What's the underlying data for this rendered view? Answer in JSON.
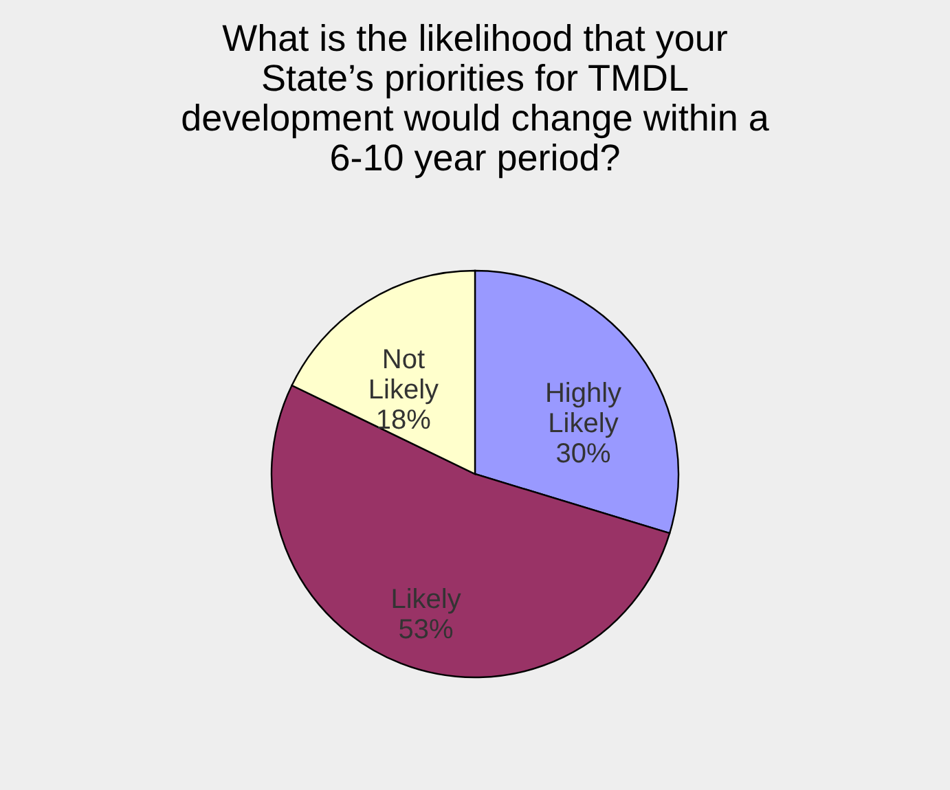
{
  "chart_data": {
    "type": "pie",
    "title": [
      "What is the likelihood that your",
      "State’s priorities for TMDL",
      "development would change within a",
      "6-10 year period?"
    ],
    "categories": [
      "Highly Likely",
      "Likely",
      "Not Likely"
    ],
    "values": [
      30,
      53,
      18
    ],
    "value_labels": [
      "30%",
      "53%",
      "18%"
    ],
    "colors": [
      "#9999ff",
      "#993366",
      "#ffffcc"
    ],
    "legend": false
  }
}
